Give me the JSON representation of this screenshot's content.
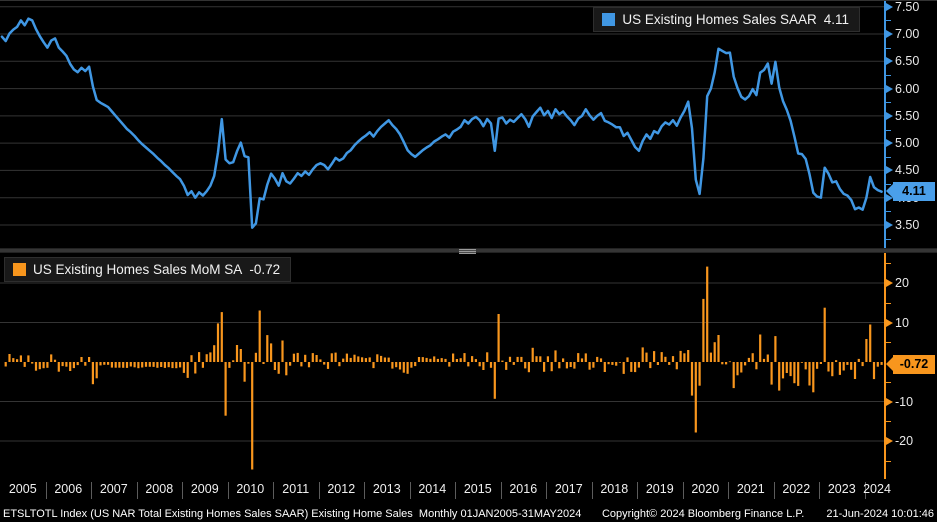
{
  "palette": {
    "line_blue": "#4097e3",
    "bar_orange": "#f8961d",
    "badge_blue": "#4a9fea",
    "badge_orange": "#f8961d",
    "grid": "#343434",
    "background": "#000000"
  },
  "chart_data": [
    {
      "type": "line",
      "series_name": "US Existing Homes Sales SAAR",
      "last_value": "4.11",
      "frequency": "monthly",
      "start": "2005-01",
      "end": "2024-05",
      "ylim": [
        3.08,
        7.6
      ],
      "yticks": [
        7.5,
        7.0,
        6.5,
        6.0,
        5.5,
        5.0,
        4.5,
        4.0,
        3.5
      ],
      "values": [
        6.95,
        6.87,
        7.01,
        7.08,
        7.13,
        7.25,
        7.16,
        7.28,
        7.25,
        7.09,
        6.96,
        6.85,
        6.75,
        6.88,
        6.92,
        6.75,
        6.68,
        6.6,
        6.45,
        6.35,
        6.3,
        6.38,
        6.32,
        6.4,
        6.04,
        5.79,
        5.74,
        5.7,
        5.66,
        5.58,
        5.5,
        5.42,
        5.34,
        5.26,
        5.2,
        5.13,
        5.05,
        4.98,
        4.92,
        4.86,
        4.8,
        4.73,
        4.67,
        4.6,
        4.54,
        4.47,
        4.4,
        4.34,
        4.22,
        4.05,
        4.12,
        4.0,
        4.1,
        4.04,
        4.12,
        4.22,
        4.4,
        4.83,
        5.44,
        4.7,
        4.63,
        4.65,
        4.85,
        5.01,
        4.76,
        4.74,
        3.45,
        3.53,
        3.99,
        3.97,
        4.24,
        4.44,
        4.35,
        4.22,
        4.45,
        4.3,
        4.26,
        4.35,
        4.45,
        4.4,
        4.48,
        4.42,
        4.52,
        4.6,
        4.63,
        4.6,
        4.52,
        4.62,
        4.73,
        4.68,
        4.72,
        4.82,
        4.87,
        4.96,
        5.03,
        5.09,
        5.14,
        5.2,
        5.12,
        5.22,
        5.3,
        5.36,
        5.42,
        5.33,
        5.26,
        5.16,
        5.02,
        4.87,
        4.8,
        4.75,
        4.81,
        4.87,
        4.92,
        4.96,
        5.03,
        5.07,
        5.12,
        5.16,
        5.1,
        5.21,
        5.25,
        5.3,
        5.42,
        5.36,
        5.44,
        5.48,
        5.42,
        5.31,
        5.44,
        5.36,
        4.86,
        5.45,
        5.47,
        5.36,
        5.43,
        5.39,
        5.46,
        5.53,
        5.44,
        5.3,
        5.49,
        5.57,
        5.65,
        5.51,
        5.59,
        5.46,
        5.62,
        5.53,
        5.58,
        5.49,
        5.42,
        5.33,
        5.45,
        5.5,
        5.62,
        5.51,
        5.43,
        5.5,
        5.55,
        5.41,
        5.38,
        5.34,
        5.29,
        5.29,
        5.13,
        5.19,
        5.06,
        4.93,
        4.86,
        5.04,
        5.16,
        5.08,
        5.22,
        5.18,
        5.31,
        5.38,
        5.34,
        5.42,
        5.32,
        5.47,
        5.59,
        5.76,
        5.27,
        4.33,
        4.07,
        4.72,
        5.86,
        6.0,
        6.3,
        6.73,
        6.69,
        6.65,
        6.66,
        6.22,
        6.01,
        5.85,
        5.8,
        5.86,
        5.99,
        5.88,
        6.29,
        6.34,
        6.46,
        6.09,
        6.49,
        6.02,
        5.77,
        5.61,
        5.41,
        5.12,
        4.81,
        4.8,
        4.71,
        4.43,
        4.09,
        4.02,
        4.0,
        4.55,
        4.44,
        4.28,
        4.3,
        4.16,
        4.07,
        4.04,
        3.96,
        3.79,
        3.82,
        3.78,
        4.0,
        4.38,
        4.19,
        4.14,
        4.11
      ]
    },
    {
      "type": "bar",
      "series_name": "US Existing Homes Sales MoM SA",
      "last_value": "-0.72",
      "derived_from": "month_over_month_percent_change_of_series_0",
      "ylim": [
        -29,
        27.5
      ],
      "yticks": [
        20,
        10,
        -10,
        -20
      ]
    }
  ],
  "x_axis": {
    "years": [
      "2005",
      "2006",
      "2007",
      "2008",
      "2009",
      "2010",
      "2011",
      "2012",
      "2013",
      "2014",
      "2015",
      "2016",
      "2017",
      "2018",
      "2019",
      "2020",
      "2021",
      "2022",
      "2023",
      "2024"
    ]
  },
  "status_bar": {
    "left": "ETSLTOTL Index (US NAR Total Existing Homes Sales SAAR) Existing Home Sales  Monthly 01JAN2005-31MAY2024",
    "copyright": "Copyright© 2024 Bloomberg Finance L.P.",
    "timestamp": "21-Jun-2024 10:01:46"
  }
}
